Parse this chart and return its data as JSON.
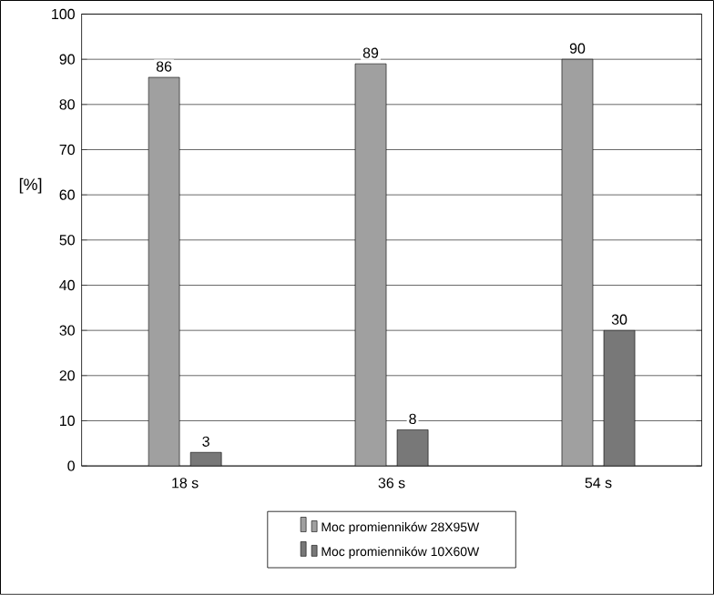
{
  "chart_data": {
    "type": "bar",
    "ylabel": "[%]",
    "categories": [
      "18 s",
      "36 s",
      "54 s"
    ],
    "series": [
      {
        "name": "Moc promienników 28X95W",
        "color": "#a0a0a0",
        "values": [
          86,
          89,
          90
        ]
      },
      {
        "name": "Moc promienników 10X60W",
        "color": "#787878",
        "values": [
          3,
          8,
          30
        ]
      }
    ],
    "ylim": [
      0,
      100
    ],
    "yticks": [
      0,
      10,
      20,
      30,
      40,
      50,
      60,
      70,
      80,
      90,
      100
    ],
    "grid": "y",
    "legend": "bottom",
    "data_labels": true
  }
}
